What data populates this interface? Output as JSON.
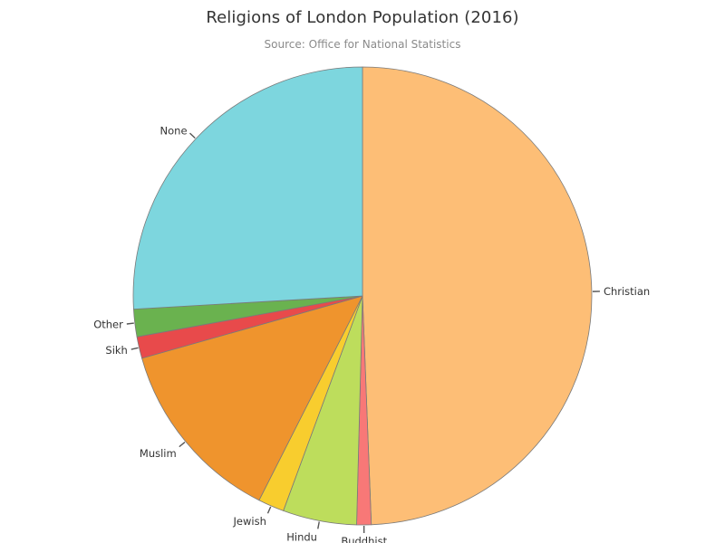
{
  "title": "Religions of London Population (2016)",
  "subtitle": "Source: Office for National Statistics",
  "chart_data": {
    "type": "pie",
    "title": "Religions of London Population (2016)",
    "subtitle": "Source: Office for National Statistics",
    "start_angle_deg": 0,
    "direction": "clockwise",
    "slice_border_color": "#7a7a7a",
    "slices": [
      {
        "label": "Christian",
        "value": 48.4,
        "color": "#fdbe76"
      },
      {
        "label": "Buddhist",
        "value": 1.0,
        "color": "#f87877"
      },
      {
        "label": "Hindu",
        "value": 5.1,
        "color": "#bddd5c"
      },
      {
        "label": "Jewish",
        "value": 1.8,
        "color": "#f8cd2e"
      },
      {
        "label": "Muslim",
        "value": 12.9,
        "color": "#ef942d"
      },
      {
        "label": "Sikh",
        "value": 1.5,
        "color": "#e84a4b"
      },
      {
        "label": "Other",
        "value": 1.9,
        "color": "#6ab24f"
      },
      {
        "label": "None",
        "value": 25.4,
        "color": "#7dd6de"
      }
    ]
  }
}
